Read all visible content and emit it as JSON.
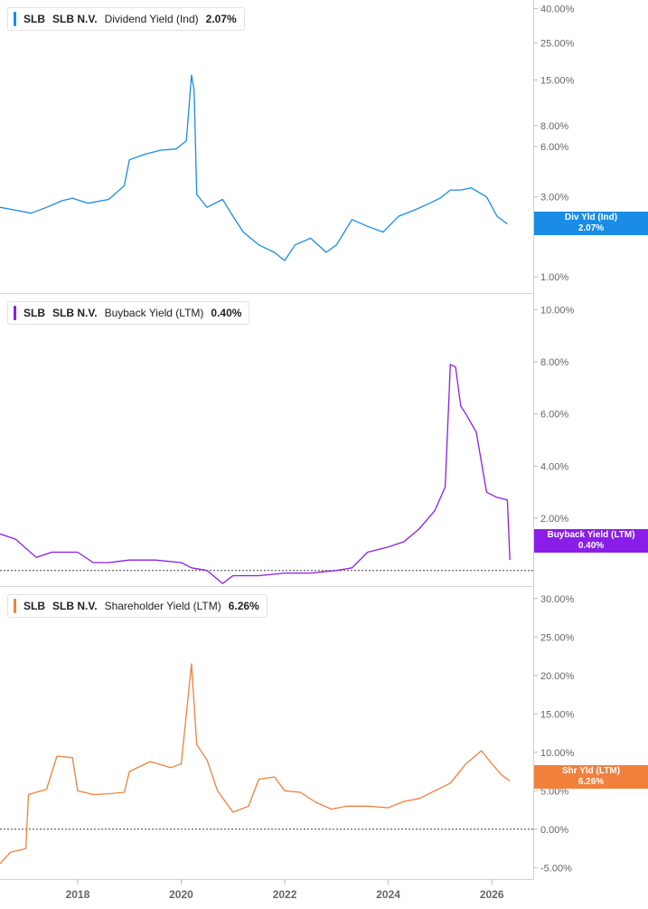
{
  "panels": [
    {
      "ticker": "SLB",
      "company": "SLB N.V.",
      "metric": "Dividend Yield (Ind)",
      "value_label": "2.07%",
      "tag_label": "Div Yld (Ind)",
      "tag_value": "2.07%",
      "color": "#1a8ce6"
    },
    {
      "ticker": "SLB",
      "company": "SLB N.V.",
      "metric": "Buyback Yield (LTM)",
      "value_label": "0.40%",
      "tag_label": "Buyback Yield (LTM)",
      "tag_value": "0.40%",
      "color": "#8a1ee8"
    },
    {
      "ticker": "SLB",
      "company": "SLB N.V.",
      "metric": "Shareholder Yield (LTM)",
      "value_label": "6.26%",
      "tag_label": "Shr Yld (LTM)",
      "tag_value": "6.26%",
      "color": "#f0803c"
    }
  ],
  "chart_data": [
    {
      "type": "line",
      "name": "Dividend Yield (Ind)",
      "scale": "log",
      "color": "#1a8ce6",
      "ylim": [
        0.8,
        45
      ],
      "y_ticks": [
        1,
        2,
        3,
        6,
        8,
        15,
        25,
        40
      ],
      "y_tick_labels": [
        "1.00%",
        "2.00%",
        "3.00%",
        "6.00%",
        "8.00%",
        "15.00%",
        "25.00%",
        "40.00%"
      ],
      "x": [
        2016.5,
        2016.8,
        2017.1,
        2017.4,
        2017.7,
        2017.9,
        2018.2,
        2018.6,
        2018.9,
        2019.0,
        2019.3,
        2019.6,
        2019.9,
        2020.1,
        2020.2,
        2020.25,
        2020.3,
        2020.5,
        2020.8,
        2021.0,
        2021.2,
        2021.5,
        2021.8,
        2022.0,
        2022.2,
        2022.5,
        2022.8,
        2023.0,
        2023.3,
        2023.6,
        2023.9,
        2024.2,
        2024.5,
        2024.8,
        2025.0,
        2025.2,
        2025.4,
        2025.6,
        2025.9,
        2026.1,
        2026.3
      ],
      "y": [
        2.6,
        2.5,
        2.4,
        2.6,
        2.85,
        2.95,
        2.75,
        2.9,
        3.5,
        5.0,
        5.4,
        5.7,
        5.8,
        6.5,
        16.0,
        13.0,
        3.1,
        2.6,
        2.9,
        2.3,
        1.85,
        1.55,
        1.4,
        1.25,
        1.55,
        1.7,
        1.4,
        1.55,
        2.2,
        2.0,
        1.85,
        2.3,
        2.5,
        2.75,
        2.95,
        3.3,
        3.3,
        3.4,
        3.0,
        2.3,
        2.07
      ]
    },
    {
      "type": "line",
      "name": "Buyback Yield (LTM)",
      "scale": "linear",
      "color": "#8a1ee8",
      "ylim": [
        -0.6,
        10.6
      ],
      "y_ticks": [
        2,
        4,
        6,
        8,
        10
      ],
      "y_tick_labels": [
        "2.00%",
        "4.00%",
        "6.00%",
        "8.00%",
        "10.00%"
      ],
      "zero_line": 0,
      "x": [
        2016.5,
        2016.8,
        2017.2,
        2017.5,
        2018.0,
        2018.3,
        2018.6,
        2019.0,
        2019.5,
        2020.0,
        2020.2,
        2020.5,
        2020.8,
        2021.0,
        2021.5,
        2022.0,
        2022.5,
        2023.0,
        2023.3,
        2023.6,
        2024.0,
        2024.3,
        2024.6,
        2024.9,
        2025.1,
        2025.2,
        2025.3,
        2025.4,
        2025.5,
        2025.7,
        2025.9,
        2026.1,
        2026.3,
        2026.35
      ],
      "y": [
        1.4,
        1.2,
        0.5,
        0.7,
        0.7,
        0.3,
        0.3,
        0.4,
        0.4,
        0.3,
        0.1,
        0.0,
        -0.5,
        -0.2,
        -0.2,
        -0.1,
        -0.1,
        0.0,
        0.1,
        0.7,
        0.9,
        1.1,
        1.6,
        2.3,
        3.2,
        7.9,
        7.8,
        6.3,
        6.0,
        5.3,
        3.0,
        2.8,
        2.7,
        0.4
      ]
    },
    {
      "type": "line",
      "name": "Shareholder Yield (LTM)",
      "scale": "linear",
      "color": "#f0803c",
      "ylim": [
        -6.5,
        31.5
      ],
      "y_ticks": [
        -5,
        0,
        5,
        10,
        15,
        20,
        25,
        30
      ],
      "y_tick_labels": [
        "-5.00%",
        "0.00%",
        "5.00%",
        "10.00%",
        "15.00%",
        "20.00%",
        "25.00%",
        "30.00%"
      ],
      "zero_line": 0,
      "x": [
        2016.5,
        2016.7,
        2016.9,
        2017.0,
        2017.05,
        2017.4,
        2017.6,
        2017.9,
        2018.0,
        2018.3,
        2018.6,
        2018.9,
        2019.0,
        2019.4,
        2019.8,
        2020.0,
        2020.2,
        2020.3,
        2020.5,
        2020.7,
        2021.0,
        2021.3,
        2021.5,
        2021.8,
        2022.0,
        2022.3,
        2022.6,
        2022.9,
        2023.2,
        2023.6,
        2024.0,
        2024.3,
        2024.6,
        2024.9,
        2025.2,
        2025.5,
        2025.8,
        2026.0,
        2026.2,
        2026.35
      ],
      "y": [
        -4.5,
        -3.0,
        -2.7,
        -2.5,
        4.5,
        5.2,
        9.5,
        9.3,
        5.0,
        4.5,
        4.6,
        4.8,
        7.5,
        8.8,
        8.0,
        8.5,
        21.5,
        11.0,
        9.0,
        5.0,
        2.2,
        3.0,
        6.5,
        6.8,
        5.0,
        4.8,
        3.5,
        2.6,
        3.0,
        3.0,
        2.8,
        3.6,
        4.0,
        5.0,
        6.0,
        8.5,
        10.2,
        8.5,
        7.0,
        6.26
      ]
    }
  ],
  "x_axis": {
    "ticks": [
      2018,
      2020,
      2022,
      2024,
      2026
    ],
    "tick_labels": [
      "2018",
      "2020",
      "2022",
      "2024",
      "2026"
    ],
    "range": [
      2016.5,
      2026.8
    ]
  }
}
